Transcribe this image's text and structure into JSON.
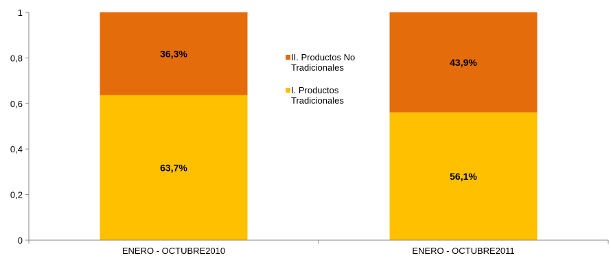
{
  "chart_data": {
    "type": "bar",
    "stacked": true,
    "categories": [
      "ENERO - OCTUBRE2010",
      "ENERO - OCTUBRE2011"
    ],
    "series": [
      {
        "name": "I. Productos Tradicionales",
        "values": [
          0.637,
          0.561
        ],
        "labels": [
          "63,7%",
          "56,1%"
        ],
        "color": "#FFC000"
      },
      {
        "name": "II. Productos No Tradicionales",
        "values": [
          0.363,
          0.439
        ],
        "labels": [
          "36,3%",
          "43,9%"
        ],
        "color": "#E46C0A"
      }
    ],
    "legend": {
      "position": "center",
      "entries": [
        {
          "lines": [
            "II. Productos No",
            "Tradicionales"
          ],
          "series": 1
        },
        {
          "lines": [
            "I. Productos",
            "Tradicionales"
          ],
          "series": 0
        }
      ]
    },
    "ylim": [
      0,
      1
    ],
    "yticks": [
      0,
      0.2,
      0.4,
      0.6,
      0.8,
      1
    ],
    "ytick_labels": [
      "0",
      "0,2",
      "0,4",
      "0,6",
      "0,8",
      "1"
    ],
    "grid": false,
    "title": "",
    "xlabel": "",
    "ylabel": ""
  }
}
